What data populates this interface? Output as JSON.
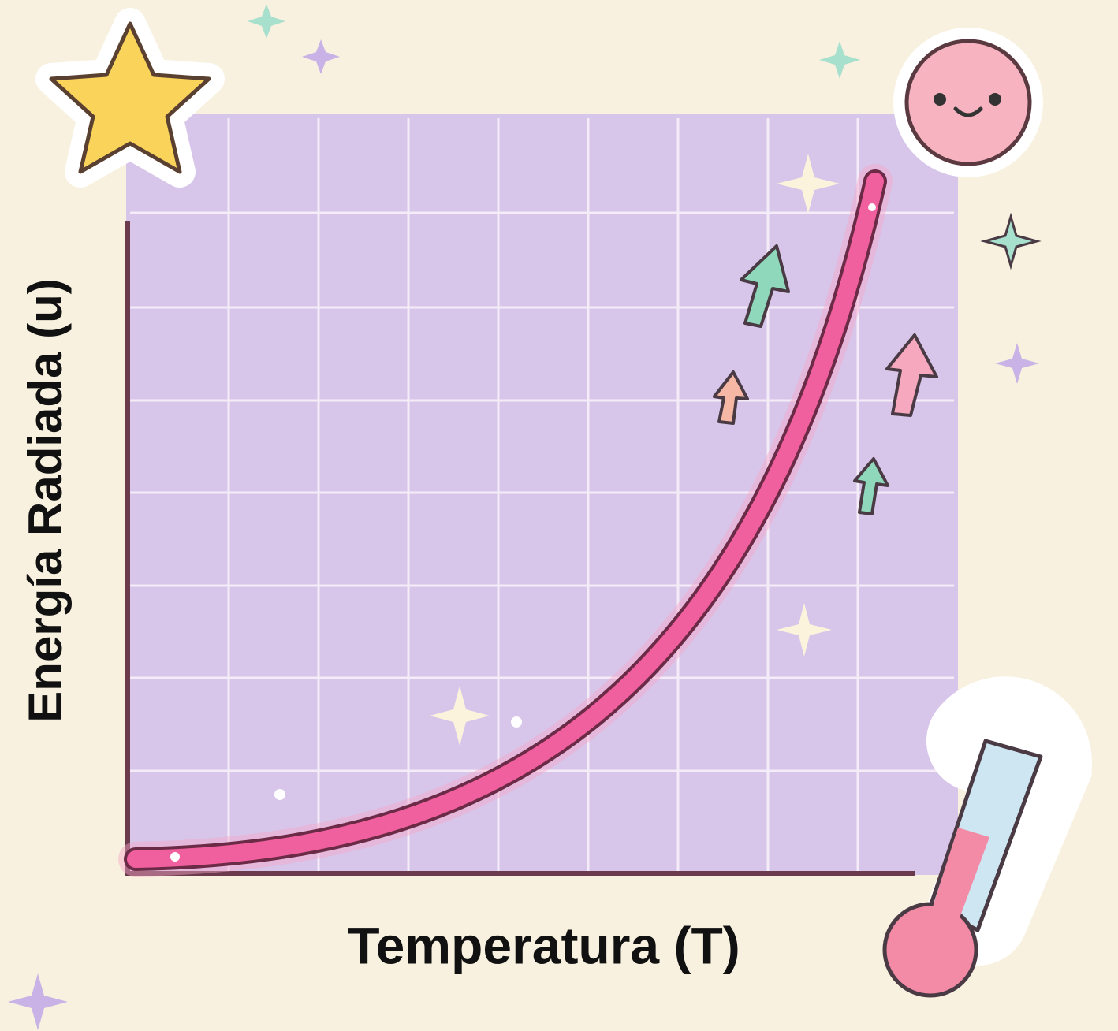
{
  "chart_data": {
    "type": "line",
    "x_label": "Temperatura (T)",
    "y_label": "Energía Radiada (u)"
  }
}
